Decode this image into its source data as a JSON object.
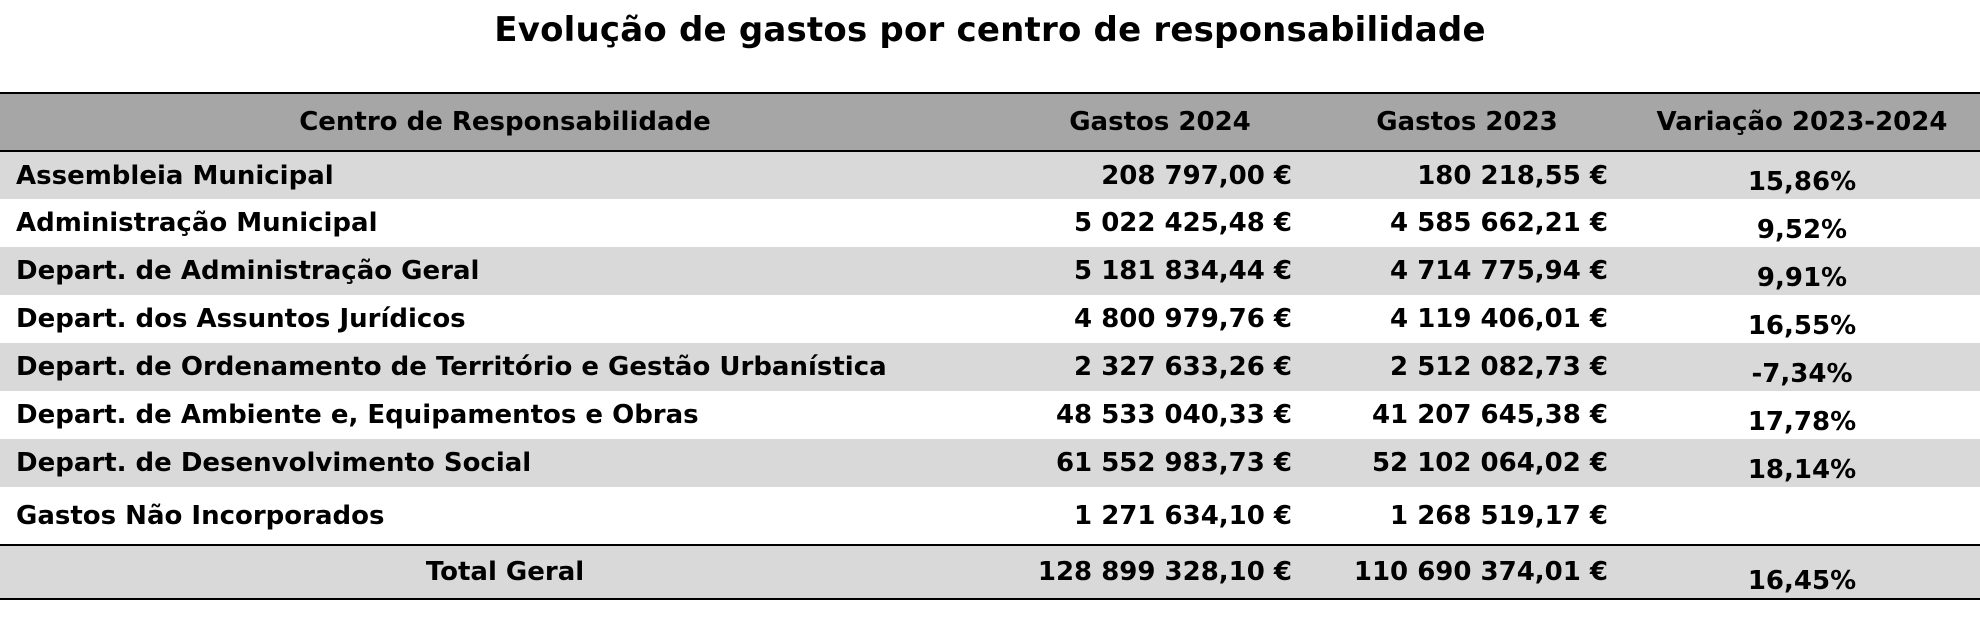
{
  "title": "Evolução de gastos por centro de responsabilidade",
  "table": {
    "headers": {
      "center": "Centro de Responsabilidade",
      "gastos2024": "Gastos 2024",
      "gastos2023": "Gastos 2023",
      "variacao": "Variação 2023-2024"
    },
    "rows": [
      {
        "name": "Assembleia Municipal",
        "gastos2024": "208 797,00 €",
        "gastos2023": "180 218,55 €",
        "variacao": "15,86%"
      },
      {
        "name": "Administração Municipal",
        "gastos2024": "5 022 425,48 €",
        "gastos2023": "4 585 662,21 €",
        "variacao": "9,52%"
      },
      {
        "name": "Depart. de Administração Geral",
        "gastos2024": "5 181 834,44 €",
        "gastos2023": "4 714 775,94 €",
        "variacao": "9,91%"
      },
      {
        "name": "Depart. dos Assuntos Jurídicos",
        "gastos2024": "4 800 979,76 €",
        "gastos2023": "4 119 406,01 €",
        "variacao": "16,55%"
      },
      {
        "name": "Depart. de Ordenamento de Território e Gestão Urbanística",
        "gastos2024": "2 327 633,26 €",
        "gastos2023": "2 512 082,73 €",
        "variacao": "-7,34%"
      },
      {
        "name": "Depart. de Ambiente e, Equipamentos e Obras",
        "gastos2024": "48 533 040,33 €",
        "gastos2023": "41 207 645,38 €",
        "variacao": "17,78%"
      },
      {
        "name": "Depart. de Desenvolvimento Social",
        "gastos2024": "61 552 983,73 €",
        "gastos2023": "52 102 064,02 €",
        "variacao": "18,14%"
      },
      {
        "name": "Gastos Não Incorporados",
        "gastos2024": "1 271 634,10 €",
        "gastos2023": "1 268 519,17 €",
        "variacao": ""
      }
    ],
    "total": {
      "name": "Total Geral",
      "gastos2024": "128 899 328,10 €",
      "gastos2023": "110 690 374,01 €",
      "variacao": "16,45%"
    }
  }
}
